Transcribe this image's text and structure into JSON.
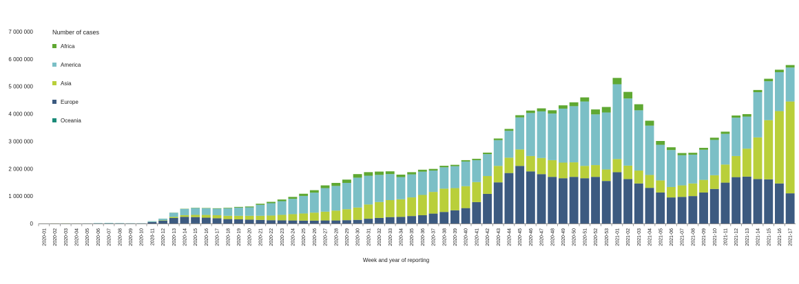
{
  "chart_data": {
    "type": "bar",
    "stacked": true,
    "legend_title": "Number of cases",
    "xlabel": "Week and year of reporting",
    "ylabel": "",
    "ylim": [
      0,
      7000000
    ],
    "yticks": [
      0,
      1000000,
      2000000,
      3000000,
      4000000,
      5000000,
      6000000,
      7000000
    ],
    "ytick_labels": [
      "0",
      "1 000 000",
      "2 000 000",
      "3 000 000",
      "4 000 000",
      "5 000 000",
      "6 000 000",
      "7 000 000"
    ],
    "grid": false,
    "legend_position": "top-left",
    "categories": [
      "2020-01",
      "2020-02",
      "2020-03",
      "2020-04",
      "2020-05",
      "2020-06",
      "2020-07",
      "2020-08",
      "2020-09",
      "2020-10",
      "2020-11",
      "2020-12",
      "2020-13",
      "2020-14",
      "2020-15",
      "2020-16",
      "2020-17",
      "2020-18",
      "2020-19",
      "2020-20",
      "2020-21",
      "2020-22",
      "2020-23",
      "2020-24",
      "2020-25",
      "2020-26",
      "2020-27",
      "2020-28",
      "2020-29",
      "2020-30",
      "2020-31",
      "2020-32",
      "2020-33",
      "2020-34",
      "2020-35",
      "2020-36",
      "2020-37",
      "2020-38",
      "2020-39",
      "2020-40",
      "2020-41",
      "2020-42",
      "2020-43",
      "2020-44",
      "2020-45",
      "2020-46",
      "2020-47",
      "2020-48",
      "2020-49",
      "2020-50",
      "2020-51",
      "2020-52",
      "2020-53",
      "2021-01",
      "2021-02",
      "2021-03",
      "2021-04",
      "2021-05",
      "2021-06",
      "2021-07",
      "2021-08",
      "2021-09",
      "2021-10",
      "2021-11",
      "2021-12",
      "2021-13",
      "2021-14",
      "2021-15",
      "2021-16",
      "2021-17"
    ],
    "series": [
      {
        "name": "Oceania",
        "color": "#1a8a78",
        "values": [
          0,
          0,
          0,
          0,
          0,
          0,
          0,
          0,
          0,
          0,
          0,
          0,
          500,
          2000,
          3000,
          2000,
          1000,
          600,
          400,
          300,
          200,
          150,
          150,
          150,
          200,
          300,
          500,
          700,
          1000,
          2000,
          3000,
          3500,
          3000,
          2500,
          2000,
          1500,
          1000,
          800,
          700,
          700,
          600,
          500,
          500,
          500,
          600,
          700,
          700,
          800,
          900,
          1000,
          1000,
          1000,
          1000,
          900,
          800,
          600,
          500,
          500,
          400,
          400,
          400,
          400,
          400,
          500,
          600,
          600,
          600,
          600,
          600,
          600
        ]
      },
      {
        "name": "Europe",
        "color": "#3c5a80",
        "values": [
          0,
          0,
          0,
          0,
          0,
          0,
          0,
          0,
          0,
          0,
          50000,
          100000,
          200000,
          240000,
          230000,
          210000,
          190000,
          160000,
          150000,
          140000,
          130000,
          120000,
          115000,
          110000,
          105000,
          105000,
          110000,
          110000,
          120000,
          130000,
          170000,
          200000,
          230000,
          240000,
          270000,
          300000,
          360000,
          420000,
          480000,
          560000,
          780000,
          1080000,
          1500000,
          1840000,
          2100000,
          1900000,
          1800000,
          1700000,
          1650000,
          1700000,
          1650000,
          1700000,
          1550000,
          1870000,
          1620000,
          1460000,
          1300000,
          1130000,
          950000,
          970000,
          1000000,
          1130000,
          1260000,
          1490000,
          1690000,
          1710000,
          1620000,
          1610000,
          1460000,
          1100000
        ]
      },
      {
        "name": "Asia",
        "color": "#b9cf3a",
        "values": [
          1000,
          3000,
          4000,
          3000,
          2000,
          2000,
          2000,
          2000,
          2000,
          2000,
          5000,
          15000,
          40000,
          60000,
          80000,
          100000,
          110000,
          120000,
          130000,
          140000,
          150000,
          170000,
          200000,
          230000,
          260000,
          290000,
          320000,
          360000,
          400000,
          450000,
          520000,
          580000,
          620000,
          640000,
          680000,
          740000,
          790000,
          850000,
          810000,
          800000,
          730000,
          650000,
          600000,
          560000,
          600000,
          560000,
          590000,
          610000,
          570000,
          530000,
          450000,
          430000,
          420000,
          480000,
          490000,
          470000,
          470000,
          440000,
          380000,
          420000,
          460000,
          460000,
          500000,
          660000,
          770000,
          1020000,
          1520000,
          2160000,
          2640000,
          3350000
        ]
      },
      {
        "name": "America",
        "color": "#7bbfc6",
        "values": [
          0,
          1000,
          2000,
          2000,
          5000,
          15000,
          20000,
          15000,
          10000,
          10000,
          30000,
          60000,
          150000,
          230000,
          250000,
          240000,
          240000,
          270000,
          300000,
          310000,
          400000,
          450000,
          500000,
          560000,
          640000,
          730000,
          860000,
          900000,
          960000,
          1090000,
          1050000,
          990000,
          950000,
          810000,
          840000,
          850000,
          780000,
          780000,
          800000,
          900000,
          800000,
          800000,
          940000,
          980000,
          1170000,
          1570000,
          1700000,
          1700000,
          1970000,
          2050000,
          2350000,
          1850000,
          2080000,
          2730000,
          2450000,
          2200000,
          1800000,
          1300000,
          1350000,
          1100000,
          1050000,
          1100000,
          1290000,
          1120000,
          1400000,
          1170000,
          1650000,
          1420000,
          1420000,
          1240000
        ]
      },
      {
        "name": "Africa",
        "color": "#5fa832",
        "values": [
          0,
          0,
          0,
          0,
          0,
          0,
          0,
          0,
          0,
          0,
          1000,
          2000,
          5000,
          8000,
          10000,
          12000,
          15000,
          20000,
          25000,
          30000,
          40000,
          50000,
          60000,
          70000,
          80000,
          90000,
          100000,
          110000,
          120000,
          130000,
          130000,
          120000,
          100000,
          90000,
          80000,
          70000,
          60000,
          55000,
          50000,
          50000,
          50000,
          55000,
          60000,
          70000,
          80000,
          90000,
          110000,
          120000,
          120000,
          140000,
          150000,
          180000,
          200000,
          230000,
          240000,
          220000,
          180000,
          140000,
          100000,
          80000,
          70000,
          70000,
          80000,
          80000,
          80000,
          90000,
          80000,
          90000,
          90000,
          90000
        ]
      }
    ]
  }
}
